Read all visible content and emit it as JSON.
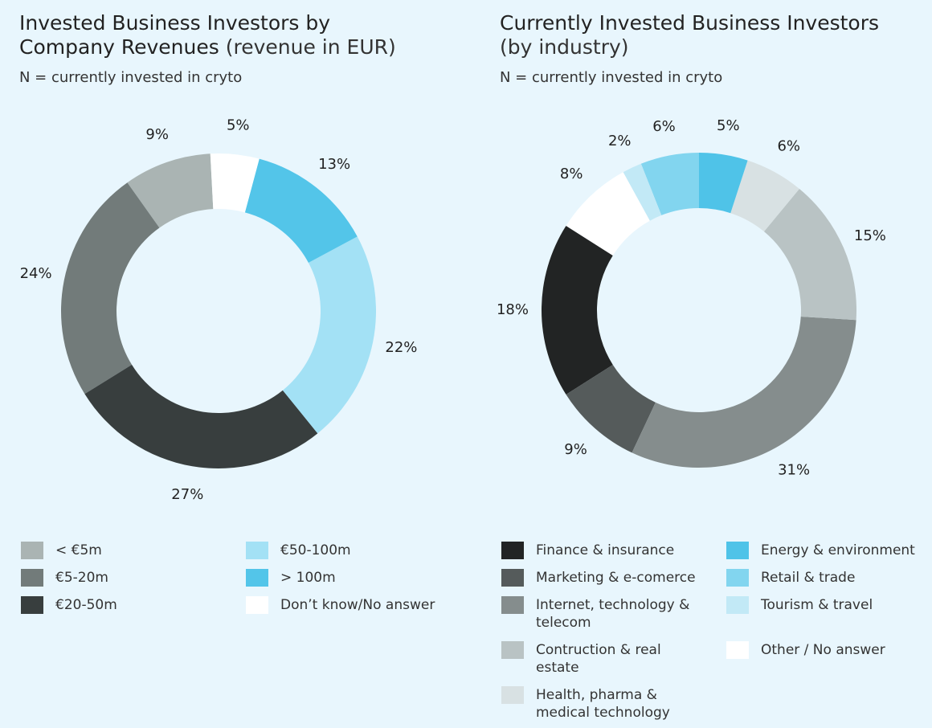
{
  "chart_data": [
    {
      "type": "donut",
      "title": "Invested Business Investors by Company Revenues",
      "title_note": "(revenue in EUR)",
      "note": "N = currently invested in cryto",
      "categories": [
        "< €5m",
        "€5-20m",
        "€20-50m",
        "€50-100m",
        "> 100m",
        "Don’t know/No answer"
      ],
      "values": [
        9,
        24,
        27,
        22,
        13,
        5
      ],
      "value_labels": [
        "9%",
        "24%",
        "27%",
        "22%",
        "13%",
        "5%"
      ],
      "colors": [
        "#aab4b3",
        "#727b7a",
        "#383e3e",
        "#a3e1f5",
        "#53c5e9",
        "#ffffff"
      ]
    },
    {
      "type": "donut",
      "title": "Currently Invested Business Investors",
      "title_note": "(by industry)",
      "note": "N = currently invested in cryto",
      "categories": [
        "Finance & insurance",
        "Marketing & e-comerce",
        "Internet, technology & telecom",
        "Contruction & real estate",
        "Health, pharma & medical technology",
        "Energy & environment",
        "Retail & trade",
        "Tourism & travel",
        "Other / No answer"
      ],
      "values": [
        18,
        9,
        31,
        15,
        6,
        5,
        6,
        2,
        8
      ],
      "value_labels": [
        "18%",
        "9%",
        "31%",
        "15%",
        "6%",
        "5%",
        "6%",
        "2%",
        "8%"
      ],
      "colors": [
        "#222424",
        "#555b5b",
        "#858d8d",
        "#b9c3c4",
        "#d8e1e3",
        "#4fc3e8",
        "#82d5ef",
        "#c2e9f6",
        "#ffffff"
      ]
    }
  ]
}
